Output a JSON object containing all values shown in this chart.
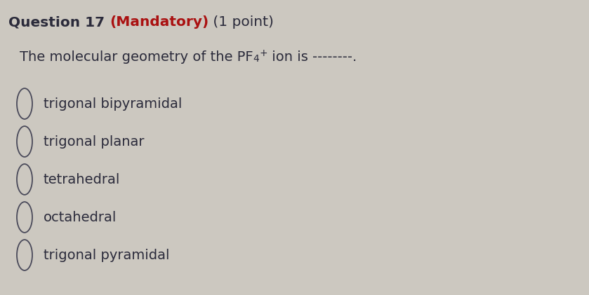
{
  "title_part1": "Question 17 ",
  "title_part2": "(Mandatory)",
  "title_part3": " (1 point)",
  "question_line": "The molecular geometry of the PF",
  "question_subscript": "4",
  "question_superscript": "+",
  "question_suffix": " ion is ",
  "question_dash": "--------.",
  "options": [
    "trigonal bipyramidal",
    "trigonal planar",
    "tetrahedral",
    "octahedral",
    "trigonal pyramidal"
  ],
  "bg_color": "#ccc8c0",
  "text_color": "#2b2b3b",
  "mandatory_color": "#aa1111",
  "title_fontsize": 14.5,
  "question_fontsize": 14,
  "option_fontsize": 14,
  "fig_width": 8.39,
  "fig_height": 4.21
}
